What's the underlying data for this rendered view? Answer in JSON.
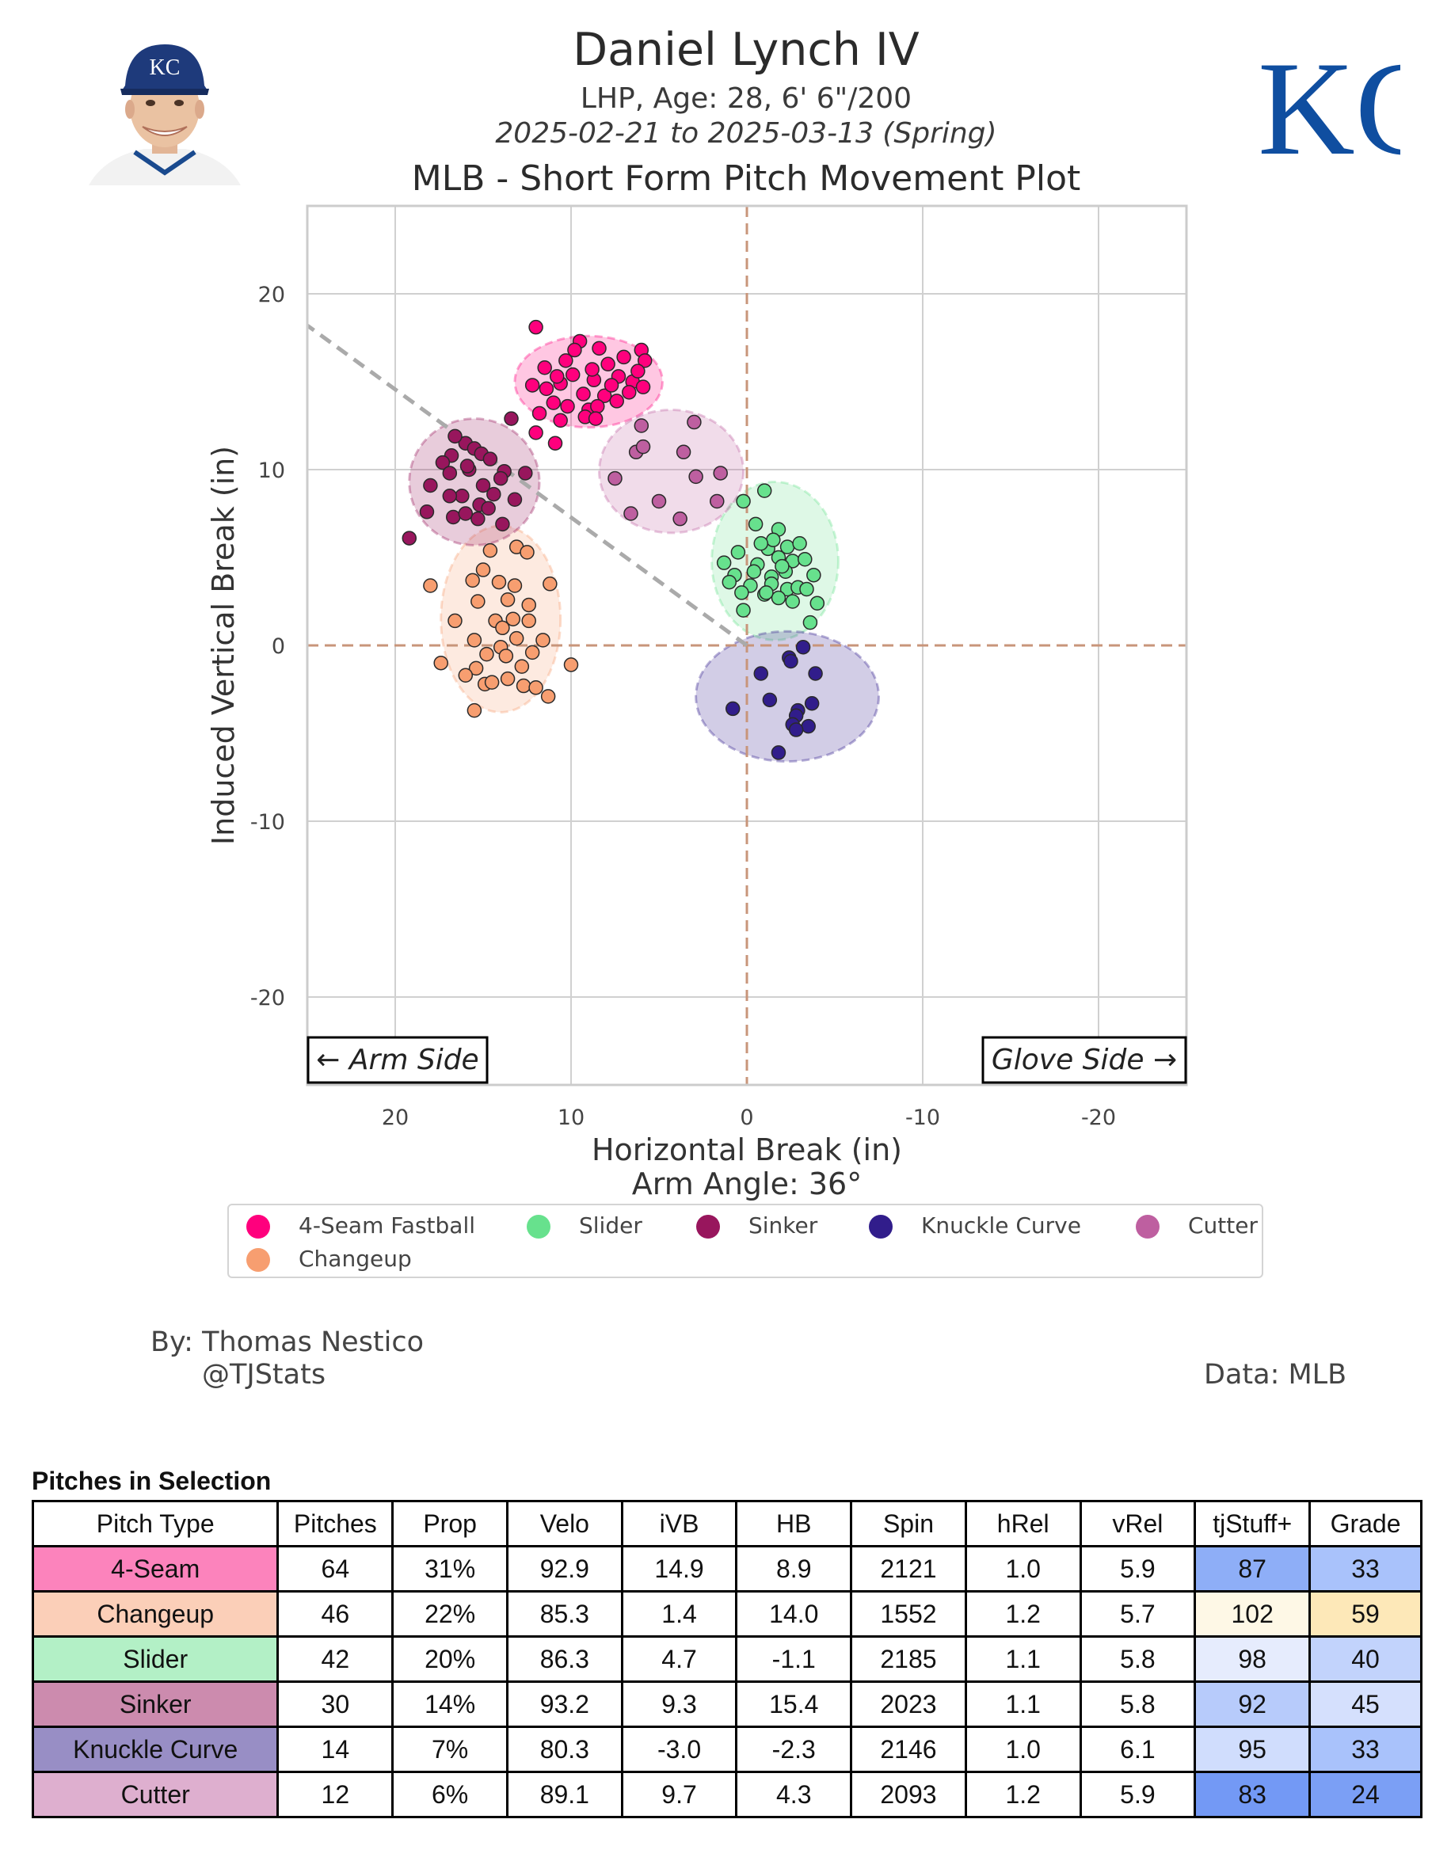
{
  "header": {
    "name": "Daniel Lynch IV",
    "bio": "LHP, Age: 28, 6' 6\"/200",
    "dates": "2025-02-21 to 2025-03-13 (Spring)",
    "plot_title": "MLB - Short Form Pitch Movement Plot",
    "team_logo_text": "KC"
  },
  "colors": {
    "4-Seam Fastball": "#ff007d",
    "Changeup": "#f79e70",
    "Slider": "#67e18d",
    "Sinker": "#98165d",
    "Knuckle Curve": "#311d8b",
    "Cutter": "#be5fa0"
  },
  "chart_data": {
    "type": "scatter",
    "xlabel": "Horizontal Break (in)",
    "ylabel": "Induced Vertical Break (in)",
    "subtitle": "Arm Angle: 36°",
    "xlim": [
      25,
      -25
    ],
    "ylim": [
      -25,
      25
    ],
    "xticks": [
      20,
      10,
      0,
      -10,
      -20
    ],
    "yticks": [
      20,
      10,
      0,
      -10,
      -20
    ],
    "grid": true,
    "arm_side_label": "← Arm Side",
    "glove_side_label": "Glove Side →",
    "arm_angle_line": {
      "from": [
        0,
        0
      ],
      "to": [
        25,
        18.2
      ]
    },
    "legend_position": "bottom",
    "series": [
      {
        "name": "4-Seam Fastball",
        "ellipse": {
          "cx": 9.0,
          "cy": 15.0,
          "rx": 4.2,
          "ry": 2.6
        },
        "points": [
          [
            12.0,
            18.1
          ],
          [
            9.5,
            17.3
          ],
          [
            8.4,
            16.9
          ],
          [
            6.0,
            16.8
          ],
          [
            5.8,
            16.2
          ],
          [
            11.5,
            15.8
          ],
          [
            10.3,
            16.2
          ],
          [
            7.9,
            16.0
          ],
          [
            9.9,
            15.4
          ],
          [
            8.7,
            15.1
          ],
          [
            7.3,
            15.3
          ],
          [
            6.5,
            15.0
          ],
          [
            12.2,
            14.8
          ],
          [
            11.4,
            14.6
          ],
          [
            10.6,
            14.9
          ],
          [
            9.3,
            14.3
          ],
          [
            8.1,
            14.2
          ],
          [
            7.7,
            14.8
          ],
          [
            6.7,
            14.4
          ],
          [
            11.0,
            13.8
          ],
          [
            10.2,
            13.6
          ],
          [
            9.0,
            13.4
          ],
          [
            8.5,
            13.6
          ],
          [
            7.4,
            13.9
          ],
          [
            11.8,
            13.2
          ],
          [
            10.6,
            12.8
          ],
          [
            9.2,
            13.0
          ],
          [
            8.6,
            12.9
          ],
          [
            12.0,
            12.1
          ],
          [
            10.9,
            11.5
          ],
          [
            5.9,
            14.7
          ],
          [
            7.0,
            16.4
          ],
          [
            9.8,
            16.8
          ],
          [
            8.8,
            15.7
          ],
          [
            10.8,
            15.3
          ],
          [
            6.2,
            15.6
          ]
        ]
      },
      {
        "name": "Changeup",
        "ellipse": {
          "cx": 14.0,
          "cy": 1.5,
          "rx": 3.4,
          "ry": 5.3
        },
        "points": [
          [
            14.6,
            5.4
          ],
          [
            13.1,
            5.6
          ],
          [
            12.5,
            5.3
          ],
          [
            15.0,
            4.3
          ],
          [
            14.1,
            3.6
          ],
          [
            15.6,
            3.7
          ],
          [
            13.2,
            3.4
          ],
          [
            18.0,
            3.4
          ],
          [
            11.2,
            3.5
          ],
          [
            15.3,
            2.5
          ],
          [
            13.6,
            2.6
          ],
          [
            12.4,
            2.3
          ],
          [
            16.6,
            1.4
          ],
          [
            14.3,
            1.4
          ],
          [
            13.3,
            1.5
          ],
          [
            12.4,
            1.4
          ],
          [
            15.5,
            0.3
          ],
          [
            13.1,
            0.4
          ],
          [
            11.6,
            0.3
          ],
          [
            14.0,
            -0.1
          ],
          [
            14.8,
            -0.5
          ],
          [
            13.7,
            -0.6
          ],
          [
            12.2,
            -0.4
          ],
          [
            17.4,
            -1.0
          ],
          [
            15.4,
            -1.3
          ],
          [
            10.0,
            -1.1
          ],
          [
            16.0,
            -1.7
          ],
          [
            13.6,
            -1.9
          ],
          [
            14.9,
            -2.2
          ],
          [
            12.7,
            -2.3
          ],
          [
            12.0,
            -2.4
          ],
          [
            11.3,
            -2.9
          ],
          [
            15.5,
            -3.7
          ],
          [
            14.5,
            -2.1
          ],
          [
            12.8,
            -1.2
          ],
          [
            13.9,
            1.0
          ]
        ]
      },
      {
        "name": "Slider",
        "ellipse": {
          "cx": -1.6,
          "cy": 4.8,
          "rx": 3.6,
          "ry": 4.5
        },
        "points": [
          [
            -1.0,
            8.8
          ],
          [
            0.2,
            8.2
          ],
          [
            -0.5,
            6.9
          ],
          [
            -1.8,
            6.6
          ],
          [
            0.5,
            5.3
          ],
          [
            -1.2,
            5.5
          ],
          [
            -2.3,
            5.6
          ],
          [
            -3.0,
            5.8
          ],
          [
            1.3,
            4.7
          ],
          [
            -0.6,
            4.6
          ],
          [
            -1.8,
            5.0
          ],
          [
            -2.6,
            4.8
          ],
          [
            -3.3,
            4.9
          ],
          [
            0.7,
            4.0
          ],
          [
            -0.4,
            4.2
          ],
          [
            -1.4,
            3.9
          ],
          [
            -2.2,
            4.2
          ],
          [
            -3.8,
            4.0
          ],
          [
            1.0,
            3.6
          ],
          [
            -0.2,
            3.4
          ],
          [
            -1.4,
            3.5
          ],
          [
            -2.3,
            3.2
          ],
          [
            -2.9,
            3.3
          ],
          [
            -1.8,
            2.7
          ],
          [
            -2.6,
            2.5
          ],
          [
            -1.0,
            2.9
          ],
          [
            0.3,
            3.0
          ],
          [
            0.2,
            2.0
          ],
          [
            -3.6,
            1.3
          ],
          [
            -4.0,
            2.4
          ],
          [
            -1.5,
            6.0
          ],
          [
            -0.8,
            5.8
          ],
          [
            -2.0,
            4.5
          ],
          [
            -1.1,
            3.0
          ],
          [
            -3.4,
            3.2
          ]
        ]
      },
      {
        "name": "Sinker",
        "ellipse": {
          "cx": 15.5,
          "cy": 9.3,
          "rx": 3.7,
          "ry": 3.6
        },
        "points": [
          [
            13.4,
            12.9
          ],
          [
            16.0,
            11.5
          ],
          [
            15.5,
            11.2
          ],
          [
            15.1,
            10.9
          ],
          [
            16.8,
            10.8
          ],
          [
            17.3,
            10.4
          ],
          [
            14.6,
            10.6
          ],
          [
            15.8,
            10.0
          ],
          [
            13.8,
            9.9
          ],
          [
            16.9,
            9.8
          ],
          [
            12.6,
            9.8
          ],
          [
            14.0,
            9.5
          ],
          [
            15.0,
            9.1
          ],
          [
            18.0,
            9.1
          ],
          [
            16.2,
            8.5
          ],
          [
            14.4,
            8.6
          ],
          [
            16.9,
            8.5
          ],
          [
            13.2,
            8.3
          ],
          [
            15.2,
            8.0
          ],
          [
            14.7,
            7.8
          ],
          [
            18.2,
            7.6
          ],
          [
            16.7,
            7.3
          ],
          [
            15.3,
            7.2
          ],
          [
            16.0,
            7.5
          ],
          [
            13.9,
            6.9
          ],
          [
            19.2,
            6.1
          ],
          [
            16.6,
            11.9
          ],
          [
            15.9,
            10.2
          ]
        ]
      },
      {
        "name": "Knuckle Curve",
        "ellipse": {
          "cx": -2.3,
          "cy": -2.9,
          "rx": 5.2,
          "ry": 3.7
        },
        "points": [
          [
            -3.2,
            -0.1
          ],
          [
            -2.4,
            -0.7
          ],
          [
            -2.5,
            -0.9
          ],
          [
            -0.8,
            -1.6
          ],
          [
            -3.9,
            -1.6
          ],
          [
            -1.3,
            -3.1
          ],
          [
            -3.7,
            -3.3
          ],
          [
            0.8,
            -3.6
          ],
          [
            -2.9,
            -3.7
          ],
          [
            -2.8,
            -4.0
          ],
          [
            -2.6,
            -4.5
          ],
          [
            -3.5,
            -4.6
          ],
          [
            -2.8,
            -4.8
          ],
          [
            -1.8,
            -6.1
          ]
        ]
      },
      {
        "name": "Cutter",
        "ellipse": {
          "cx": 4.3,
          "cy": 9.9,
          "rx": 4.1,
          "ry": 3.5
        },
        "points": [
          [
            6.0,
            12.5
          ],
          [
            3.0,
            12.7
          ],
          [
            6.3,
            11.0
          ],
          [
            3.6,
            11.0
          ],
          [
            5.9,
            11.3
          ],
          [
            7.5,
            9.5
          ],
          [
            2.9,
            9.6
          ],
          [
            1.5,
            9.8
          ],
          [
            5.0,
            8.2
          ],
          [
            1.7,
            8.2
          ],
          [
            3.8,
            7.2
          ],
          [
            6.6,
            7.5
          ]
        ]
      }
    ]
  },
  "legend": {
    "items": [
      "4-Seam Fastball",
      "Slider",
      "Sinker",
      "Knuckle Curve",
      "Cutter",
      "Changeup"
    ]
  },
  "credits": {
    "by": "By: Thomas Nestico",
    "handle": "@TJStats",
    "data": "Data: MLB"
  },
  "table": {
    "title": "Pitches in Selection",
    "columns": [
      "Pitch Type",
      "Pitches",
      "Prop",
      "Velo",
      "iVB",
      "HB",
      "Spin",
      "hRel",
      "vRel",
      "tjStuff+",
      "Grade"
    ],
    "rows": [
      {
        "type": "4-Seam",
        "color": "#fc83bc",
        "cells": [
          "64",
          "31%",
          "92.9",
          "14.9",
          "8.9",
          "2121",
          "1.0",
          "5.9"
        ],
        "stuff": "87",
        "stuff_bg": "#8eaef7",
        "grade": "33",
        "grade_bg": "#a9c2fb"
      },
      {
        "type": "Changeup",
        "color": "#fbcfb8",
        "cells": [
          "46",
          "22%",
          "85.3",
          "1.4",
          "14.0",
          "1552",
          "1.2",
          "5.7"
        ],
        "stuff": "102",
        "stuff_bg": "#fef8e6",
        "grade": "59",
        "grade_bg": "#fde8b8"
      },
      {
        "type": "Slider",
        "color": "#b3f0c6",
        "cells": [
          "42",
          "20%",
          "86.3",
          "4.7",
          "-1.1",
          "2185",
          "1.1",
          "5.8"
        ],
        "stuff": "98",
        "stuff_bg": "#e6ecfd",
        "grade": "40",
        "grade_bg": "#c2d3fc"
      },
      {
        "type": "Sinker",
        "color": "#cc8bae",
        "cells": [
          "30",
          "14%",
          "93.2",
          "9.3",
          "15.4",
          "2023",
          "1.1",
          "5.8"
        ],
        "stuff": "92",
        "stuff_bg": "#b7cbfb",
        "grade": "45",
        "grade_bg": "#d5e0fd"
      },
      {
        "type": "Knuckle Curve",
        "color": "#988ec5",
        "cells": [
          "14",
          "7%",
          "80.3",
          "-3.0",
          "-2.3",
          "2146",
          "1.0",
          "6.1"
        ],
        "stuff": "95",
        "stuff_bg": "#d0ddfd",
        "grade": "33",
        "grade_bg": "#a9c2fb"
      },
      {
        "type": "Cutter",
        "color": "#deafcf",
        "cells": [
          "12",
          "6%",
          "89.1",
          "9.7",
          "4.3",
          "2093",
          "1.2",
          "5.9"
        ],
        "stuff": "83",
        "stuff_bg": "#7399f5",
        "grade": "24",
        "grade_bg": "#7b9ff5"
      }
    ]
  }
}
